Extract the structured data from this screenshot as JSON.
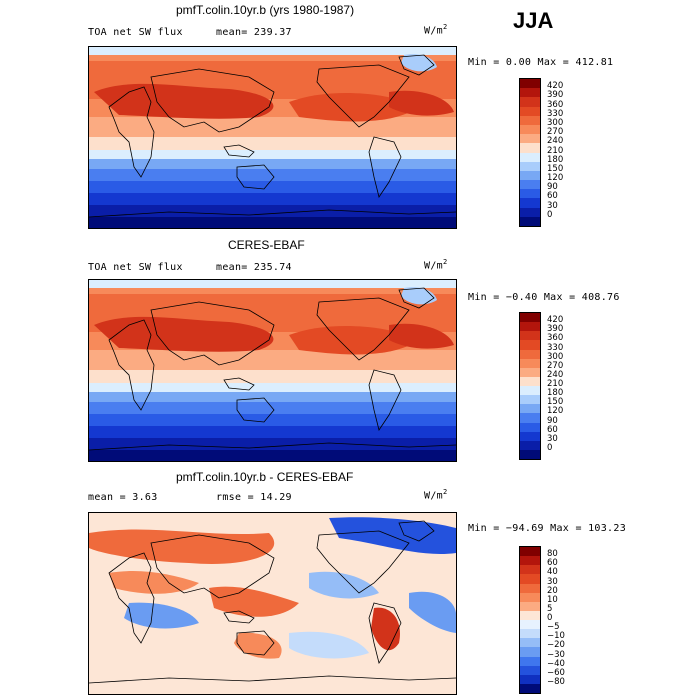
{
  "season": "JJA",
  "panels": [
    {
      "title": "pmfT.colin.10yr.b (yrs 1980-1987)",
      "variable": "TOA net SW flux",
      "stat1": "mean=  239.37",
      "stat2": "",
      "units": "W/m",
      "units_exp": "2",
      "minmax": "Min =    0.00 Max = 412.81",
      "kind": "abs",
      "colorbar_ticks": [
        "420",
        "390",
        "360",
        "330",
        "300",
        "270",
        "240",
        "210",
        "180",
        "150",
        "120",
        "90",
        "60",
        "30",
        "0"
      ]
    },
    {
      "title": "CERES-EBAF",
      "variable": "TOA net SW flux",
      "stat1": "mean=  235.74",
      "stat2": "",
      "units": "W/m",
      "units_exp": "2",
      "minmax": "Min =  −0.40 Max = 408.76",
      "kind": "abs",
      "colorbar_ticks": [
        "420",
        "390",
        "360",
        "330",
        "300",
        "270",
        "240",
        "210",
        "180",
        "150",
        "120",
        "90",
        "60",
        "30",
        "0"
      ]
    },
    {
      "title": "pmfT.colin.10yr.b - CERES-EBAF",
      "variable": "",
      "stat1": "mean =    3.63",
      "stat2": "rmse =  14.29",
      "units": "W/m",
      "units_exp": "2",
      "minmax": "Min = −94.69 Max = 103.23",
      "kind": "diff",
      "colorbar_ticks": [
        "80",
        "60",
        "40",
        "30",
        "20",
        "10",
        "5",
        "0",
        "−5",
        "−10",
        "−20",
        "−30",
        "−40",
        "−60",
        "−80"
      ]
    }
  ],
  "colors": {
    "abs_scale": [
      "#800000",
      "#b3150c",
      "#d2331a",
      "#e34a24",
      "#ef6a3c",
      "#f78a5a",
      "#fbab82",
      "#fde0cc",
      "#dbeefe",
      "#a9cdfb",
      "#78a8f4",
      "#4a7ef0",
      "#2a5be6",
      "#1438d0",
      "#0a1ea8",
      "#000b78"
    ],
    "diff_scale": [
      "#800000",
      "#b3150c",
      "#d2331a",
      "#e34a24",
      "#ef6a3c",
      "#f78a5a",
      "#fbab82",
      "#fde6d6",
      "#e7f2fe",
      "#c4dcfb",
      "#95bdf7",
      "#6a9cf2",
      "#3f76ee",
      "#2452dd",
      "#1030c0",
      "#000b78"
    ]
  }
}
